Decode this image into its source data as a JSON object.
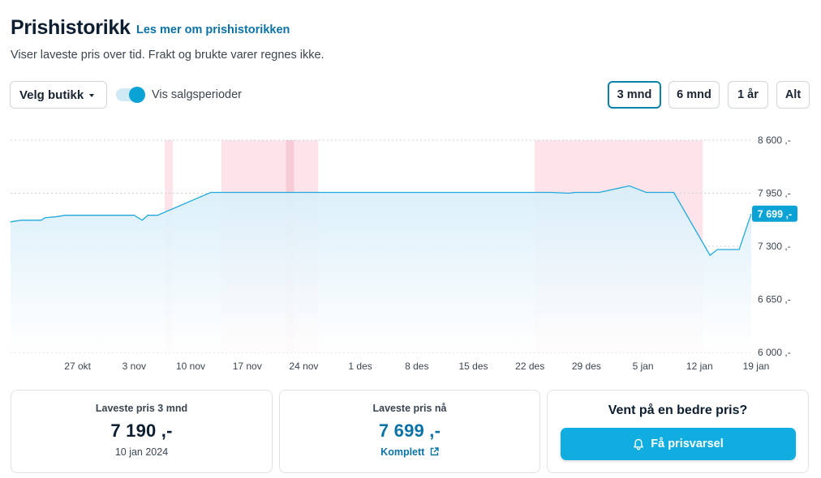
{
  "header": {
    "title": "Prishistorikk",
    "learn_more": "Les mer om prishistorikken",
    "subtitle": "Viser laveste pris over tid. Frakt og brukte varer regnes ikke."
  },
  "controls": {
    "store_select": "Velg butikk",
    "toggle_label": "Vis salgsperioder",
    "toggle_on": true,
    "ranges": [
      {
        "label": "3 mnd",
        "active": true
      },
      {
        "label": "6 mnd",
        "active": false
      },
      {
        "label": "1 år",
        "active": false
      },
      {
        "label": "Alt",
        "active": false
      }
    ]
  },
  "colors": {
    "line": "#22a9dc",
    "area": "#e6f4fb",
    "sale_period": "#fde4ea",
    "sale_period_dark": "#f8ccd6",
    "current_badge": "#0ba3d6",
    "accent_link": "#0b72a8"
  },
  "chart_data": {
    "type": "line",
    "y_ticks": [
      "8 600 ,-",
      "7 950 ,-",
      "7 300 ,-",
      "6 650 ,-",
      "6 000 ,-"
    ],
    "ylim": [
      6000,
      8600
    ],
    "x_ticks": [
      "27 okt",
      "3 nov",
      "10 nov",
      "17 nov",
      "24 nov",
      "1 des",
      "8 des",
      "15 des",
      "22 des",
      "29 des",
      "5 jan",
      "12 jan",
      "19 jan"
    ],
    "x_range_days": [
      -8.3,
      83.4
    ],
    "current_value_label": "7 699 ,-",
    "series": [
      {
        "x": [
          -8.3,
          -7,
          -6,
          -4.5,
          -4,
          -2.8,
          -1.5,
          2,
          4,
          5.5,
          6.2,
          7,
          8,
          8.7,
          9.9,
          16.5,
          17.1,
          18.4,
          26.4,
          27.2,
          49.8,
          52,
          58.7,
          60.8,
          61.6,
          63.6,
          64.6,
          68.3,
          70.4,
          71.9,
          73.1,
          73.8,
          78.3,
          79.2,
          80,
          81.9,
          83.4
        ],
        "y": [
          7600,
          7620,
          7620,
          7620,
          7650,
          7660,
          7680,
          7680,
          7680,
          7680,
          7680,
          7680,
          7620,
          7680,
          7680,
          7960,
          7960,
          7960,
          7960,
          7960,
          7960,
          7960,
          7960,
          7950,
          7960,
          7960,
          7960,
          8040,
          7960,
          7960,
          7960,
          7960,
          7190,
          7260,
          7260,
          7260,
          7699
        ]
      }
    ],
    "sale_periods": [
      {
        "start_day": 10.8,
        "end_day": 11.8
      },
      {
        "start_day": 17.8,
        "end_day": 29.8
      },
      {
        "start_day": 25.8,
        "end_day": 26.8,
        "emphasis": true
      },
      {
        "start_day": 56.6,
        "end_day": 77.4
      }
    ]
  },
  "cards": {
    "lowest_3m": {
      "label": "Laveste pris 3 mnd",
      "value": "7 190 ,-",
      "date": "10 jan 2024"
    },
    "lowest_now": {
      "label": "Laveste pris nå",
      "value": "7 699 ,-",
      "store": "Komplett"
    },
    "alert": {
      "heading": "Vent på en bedre pris?",
      "button": "Få prisvarsel"
    }
  }
}
